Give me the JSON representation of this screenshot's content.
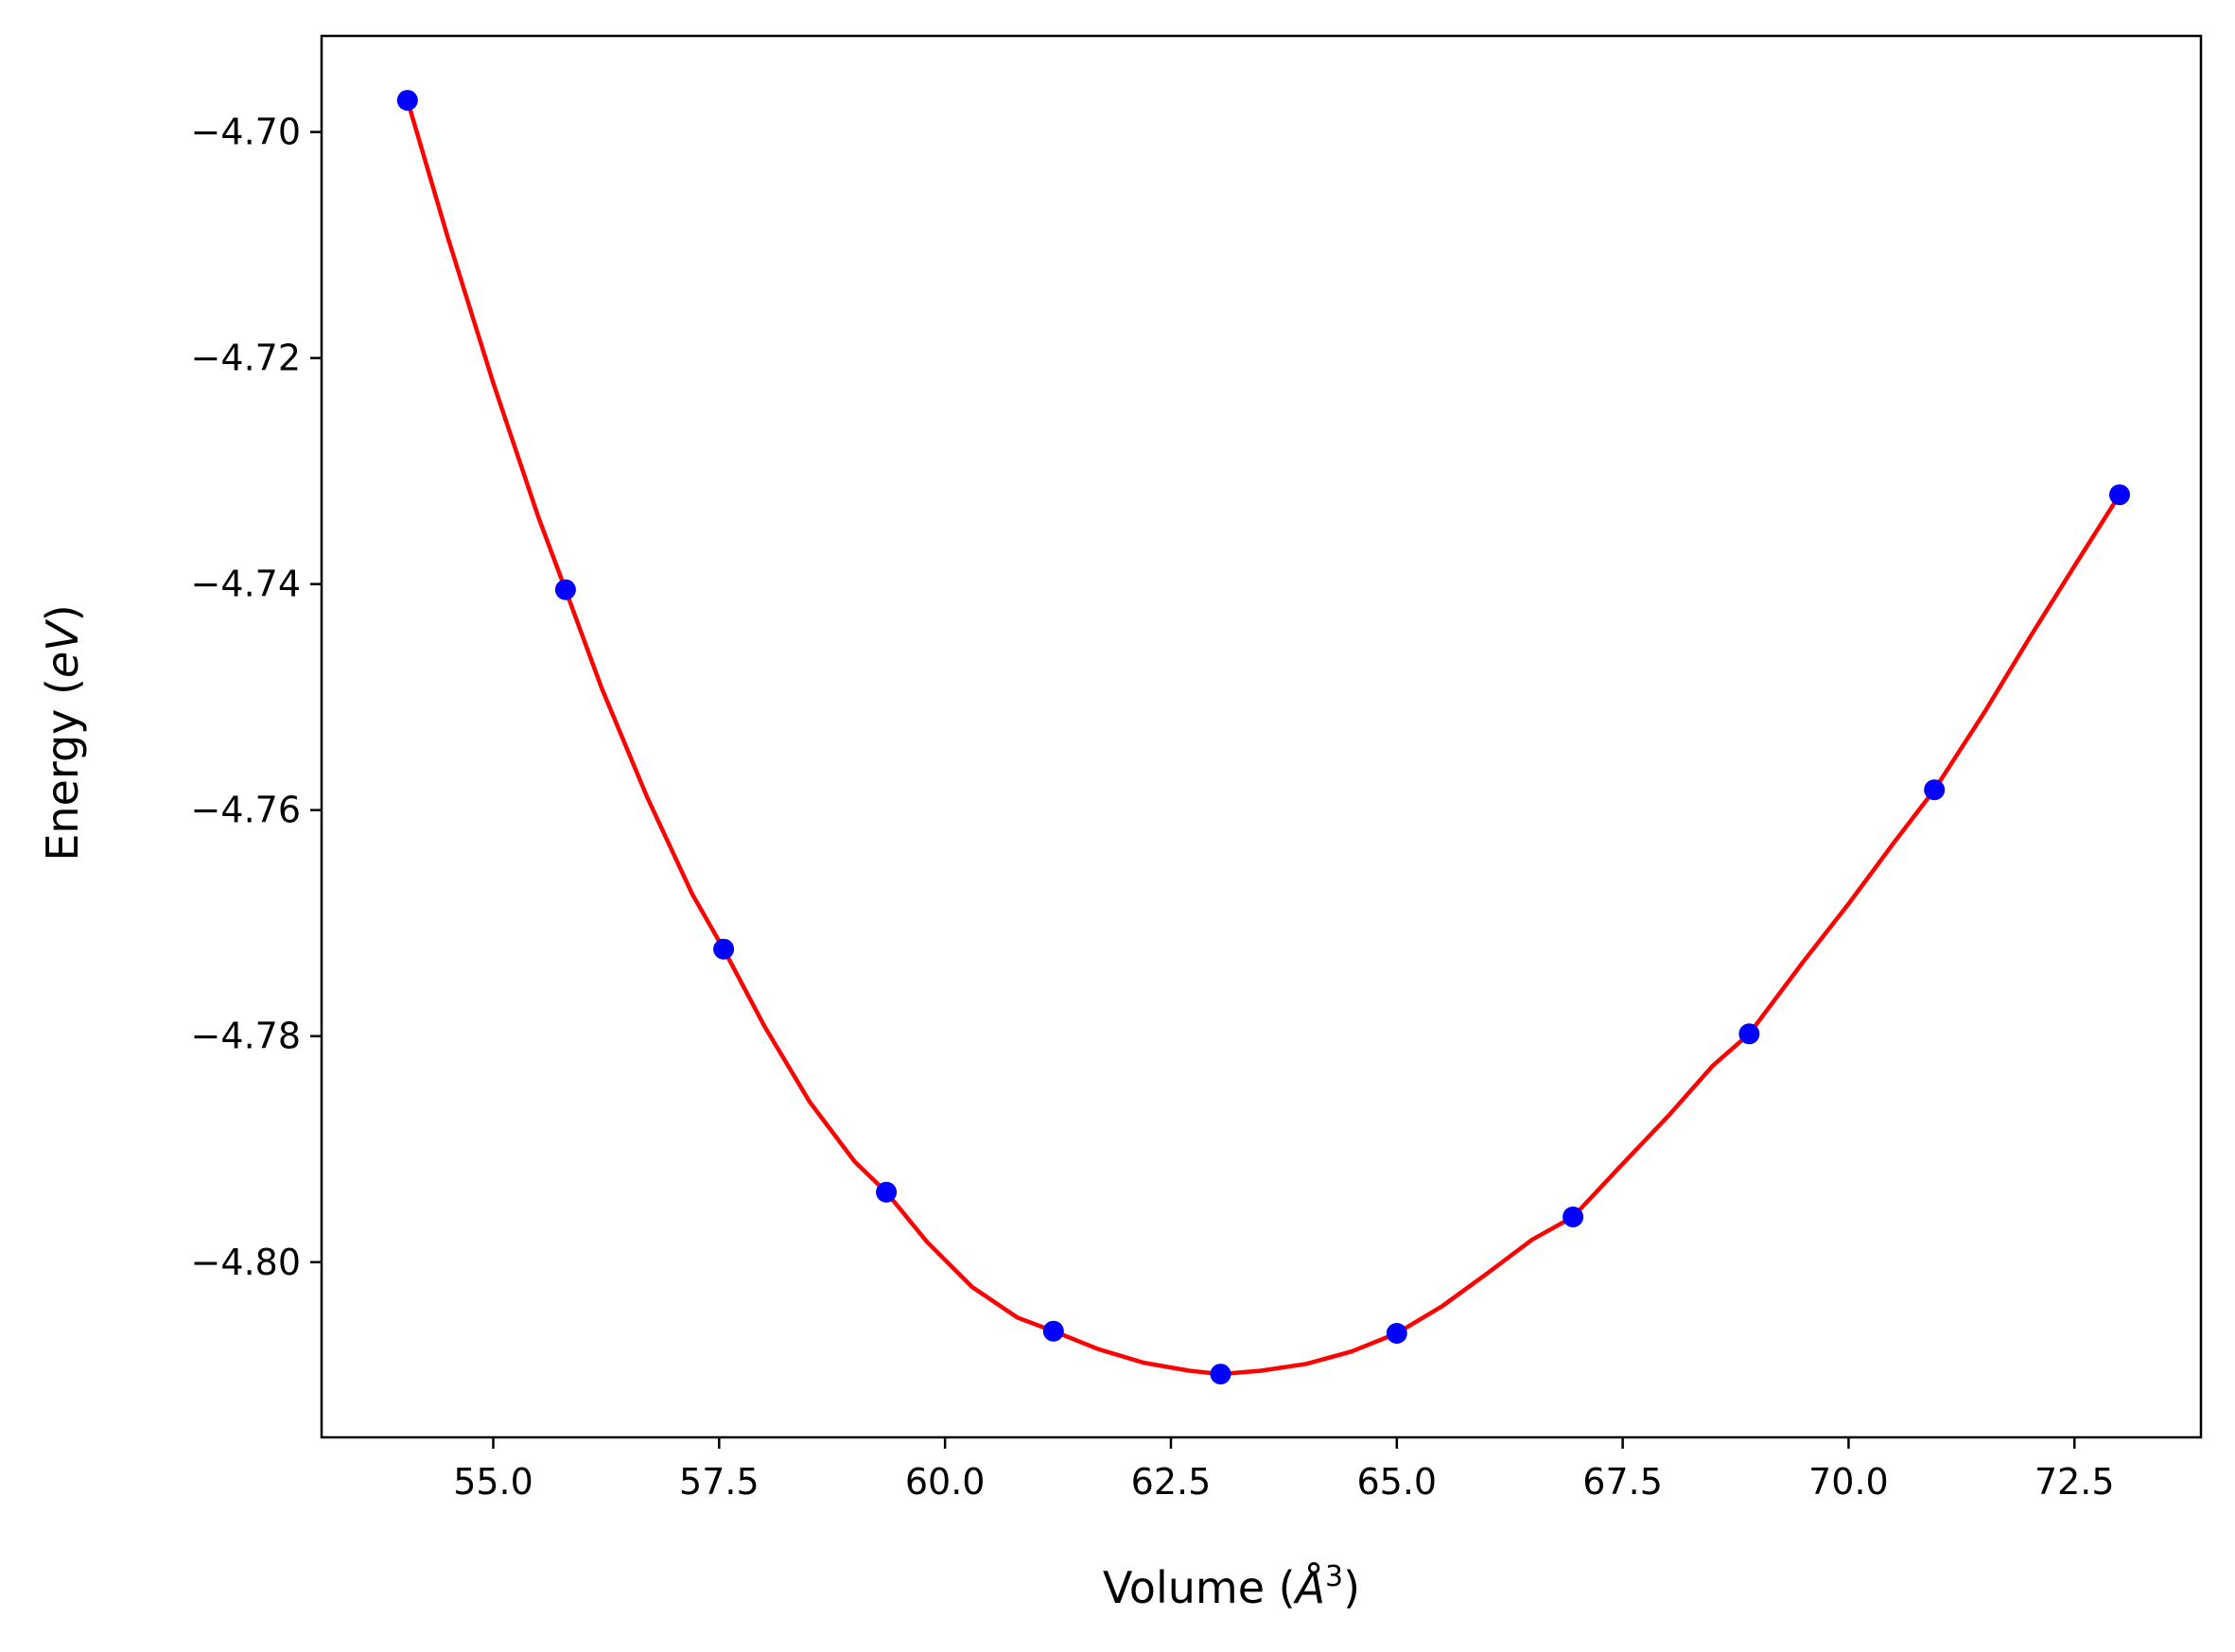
{
  "chart_data": {
    "type": "scatter",
    "title": "",
    "xlabel": {
      "prefix": "Volume (",
      "unit": "Å",
      "sup": "3",
      "suffix": ")"
    },
    "ylabel": {
      "prefix": "Energy (",
      "unit": "eV",
      "suffix": ")"
    },
    "xlim": [
      53.1,
      73.9
    ],
    "ylim": [
      -4.8155,
      -4.6915
    ],
    "xticks": [
      55.0,
      57.5,
      60.0,
      62.5,
      65.0,
      67.5,
      70.0,
      72.5
    ],
    "xtick_labels": [
      "55.0",
      "57.5",
      "60.0",
      "62.5",
      "65.0",
      "67.5",
      "70.0",
      "72.5"
    ],
    "yticks": [
      -4.7,
      -4.72,
      -4.74,
      -4.76,
      -4.78,
      -4.8
    ],
    "ytick_labels": [
      "−4.70",
      "−4.72",
      "−4.74",
      "−4.76",
      "−4.78",
      "−4.80"
    ],
    "grid": false,
    "series": [
      {
        "kind": "points",
        "color": "#0000ff",
        "x": [
          54.05,
          55.8,
          57.55,
          59.35,
          61.2,
          63.05,
          65.0,
          66.95,
          68.9,
          70.95,
          73.0
        ],
        "y": [
          -4.6972,
          -4.7405,
          -4.7723,
          -4.7938,
          -4.8061,
          -4.8099,
          -4.8063,
          -4.796,
          -4.7798,
          -4.7582,
          -4.7321
        ]
      },
      {
        "kind": "fit-line",
        "color": "#ff0000",
        "x": [
          54.05,
          54.5,
          55.0,
          55.5,
          55.8,
          56.2,
          56.7,
          57.2,
          57.55,
          58.0,
          58.5,
          59.0,
          59.35,
          59.8,
          60.3,
          60.8,
          61.2,
          61.7,
          62.2,
          62.7,
          63.05,
          63.5,
          64.0,
          64.5,
          65.0,
          65.5,
          66.0,
          66.5,
          66.95,
          67.5,
          68.0,
          68.5,
          68.9,
          69.5,
          70.0,
          70.5,
          70.95,
          71.5,
          72.0,
          72.5,
          73.0
        ],
        "y": [
          -4.6972,
          -4.7094,
          -4.7222,
          -4.7341,
          -4.7405,
          -4.7492,
          -4.7588,
          -4.7674,
          -4.7723,
          -4.7791,
          -4.7858,
          -4.7911,
          -4.7938,
          -4.7982,
          -4.8022,
          -4.8049,
          -4.8061,
          -4.8077,
          -4.8089,
          -4.8096,
          -4.8099,
          -4.8096,
          -4.809,
          -4.8079,
          -4.8063,
          -4.8039,
          -4.801,
          -4.798,
          -4.796,
          -4.7913,
          -4.7871,
          -4.7826,
          -4.7798,
          -4.7734,
          -4.7683,
          -4.7629,
          -4.7582,
          -4.7514,
          -4.7448,
          -4.7384,
          -4.7321
        ]
      }
    ]
  }
}
